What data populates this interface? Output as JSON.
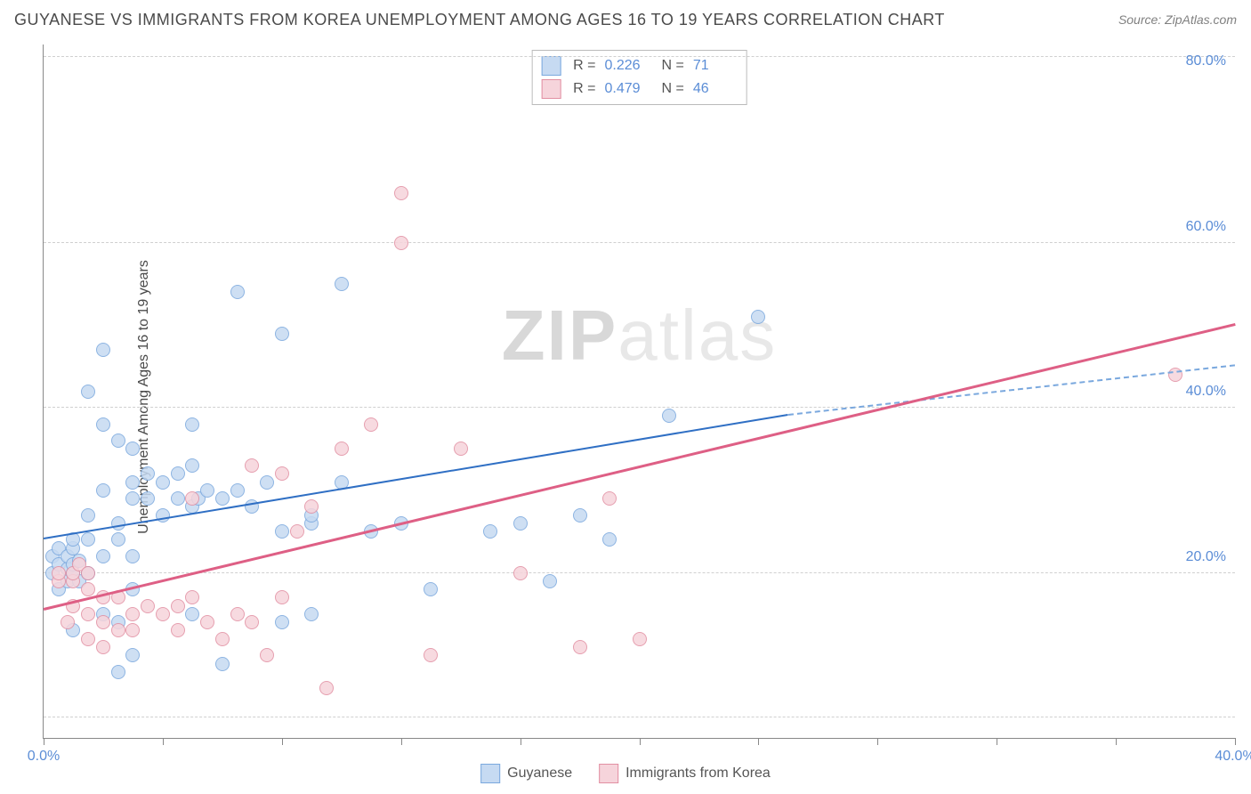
{
  "header": {
    "title": "GUYANESE VS IMMIGRANTS FROM KOREA UNEMPLOYMENT AMONG AGES 16 TO 19 YEARS CORRELATION CHART",
    "source": "Source: ZipAtlas.com"
  },
  "watermark": {
    "part1": "ZIP",
    "part2": "atlas"
  },
  "chart": {
    "type": "scatter",
    "ylabel": "Unemployment Among Ages 16 to 19 years",
    "xlim": [
      0,
      40
    ],
    "ylim": [
      0,
      84
    ],
    "background_color": "#ffffff",
    "grid_color": "#d0d0d0",
    "axis_color": "#888888",
    "tick_label_color": "#5b8dd6",
    "axis_label_color": "#4a4a4a",
    "marker_radius": 8,
    "marker_stroke_width": 1.5,
    "yticks": [
      {
        "value": 20,
        "label": "20.0%"
      },
      {
        "value": 40,
        "label": "40.0%"
      },
      {
        "value": 60,
        "label": "60.0%"
      },
      {
        "value": 80,
        "label": "80.0%"
      }
    ],
    "y_gridlines": [
      2.5,
      20,
      40,
      60,
      82.5
    ],
    "xtick_positions": [
      0,
      4,
      8,
      12,
      16,
      20,
      24,
      28,
      32,
      36,
      40
    ],
    "xtick_labels": [
      {
        "value": 0,
        "label": "0.0%"
      },
      {
        "value": 40,
        "label": "40.0%"
      }
    ],
    "series": [
      {
        "name": "Guyanese",
        "fill": "#c6daf2",
        "stroke": "#7aa8de",
        "r": 0.226,
        "n": 71,
        "trend": {
          "x1": 0,
          "y1": 24,
          "x2": 25,
          "y2": 39,
          "color": "#2f6fc4",
          "width": 2
        },
        "trend_extrapolate": {
          "x1": 25,
          "y1": 39,
          "x2": 40,
          "y2": 45,
          "color": "#7aa8de"
        },
        "points": [
          [
            0.3,
            20
          ],
          [
            0.3,
            22
          ],
          [
            0.5,
            18
          ],
          [
            0.5,
            21
          ],
          [
            0.5,
            23
          ],
          [
            0.8,
            19
          ],
          [
            0.8,
            20.5
          ],
          [
            0.8,
            22
          ],
          [
            1,
            13
          ],
          [
            1,
            20
          ],
          [
            1,
            21
          ],
          [
            1,
            23
          ],
          [
            1,
            24
          ],
          [
            1.2,
            19
          ],
          [
            1.2,
            21.5
          ],
          [
            1.5,
            20
          ],
          [
            1.5,
            24
          ],
          [
            1.5,
            27
          ],
          [
            1.5,
            42
          ],
          [
            2,
            15
          ],
          [
            2,
            22
          ],
          [
            2,
            30
          ],
          [
            2,
            38
          ],
          [
            2,
            47
          ],
          [
            2.5,
            8
          ],
          [
            2.5,
            14
          ],
          [
            2.5,
            24
          ],
          [
            2.5,
            26
          ],
          [
            2.5,
            36
          ],
          [
            3,
            10
          ],
          [
            3,
            18
          ],
          [
            3,
            22
          ],
          [
            3,
            29
          ],
          [
            3,
            31
          ],
          [
            3,
            35
          ],
          [
            3.5,
            29
          ],
          [
            3.5,
            32
          ],
          [
            4,
            27
          ],
          [
            4,
            31
          ],
          [
            4.5,
            29
          ],
          [
            4.5,
            32
          ],
          [
            5,
            15
          ],
          [
            5,
            28
          ],
          [
            5,
            33
          ],
          [
            5,
            38
          ],
          [
            5.2,
            29
          ],
          [
            5.5,
            30
          ],
          [
            6,
            9
          ],
          [
            6,
            29
          ],
          [
            6.5,
            30
          ],
          [
            6.5,
            54
          ],
          [
            7,
            28
          ],
          [
            7.5,
            31
          ],
          [
            8,
            14
          ],
          [
            8,
            25
          ],
          [
            8,
            49
          ],
          [
            9,
            15
          ],
          [
            9,
            26
          ],
          [
            9,
            27
          ],
          [
            10,
            55
          ],
          [
            10,
            31
          ],
          [
            11,
            25
          ],
          [
            12,
            26
          ],
          [
            13,
            18
          ],
          [
            15,
            25
          ],
          [
            16,
            26
          ],
          [
            17,
            19
          ],
          [
            18,
            27
          ],
          [
            19,
            24
          ],
          [
            21,
            39
          ],
          [
            24,
            51
          ]
        ]
      },
      {
        "name": "Immigrants from Korea",
        "fill": "#f6d4db",
        "stroke": "#e28fa2",
        "r": 0.479,
        "n": 46,
        "trend": {
          "x1": 0,
          "y1": 15.5,
          "x2": 40,
          "y2": 50,
          "color": "#de5f85",
          "width": 2.5
        },
        "points": [
          [
            0.5,
            19
          ],
          [
            0.5,
            20
          ],
          [
            0.8,
            14
          ],
          [
            1,
            16
          ],
          [
            1,
            19
          ],
          [
            1,
            20
          ],
          [
            1.2,
            21
          ],
          [
            1.5,
            12
          ],
          [
            1.5,
            15
          ],
          [
            1.5,
            18
          ],
          [
            1.5,
            20
          ],
          [
            2,
            11
          ],
          [
            2,
            14
          ],
          [
            2,
            17
          ],
          [
            2.5,
            13
          ],
          [
            2.5,
            17
          ],
          [
            3,
            13
          ],
          [
            3,
            15
          ],
          [
            3.5,
            16
          ],
          [
            4,
            15
          ],
          [
            4.5,
            13
          ],
          [
            4.5,
            16
          ],
          [
            5,
            17
          ],
          [
            5,
            29
          ],
          [
            5.5,
            14
          ],
          [
            6,
            12
          ],
          [
            6.5,
            15
          ],
          [
            7,
            14
          ],
          [
            7,
            33
          ],
          [
            7.5,
            10
          ],
          [
            8,
            17
          ],
          [
            8,
            32
          ],
          [
            8.5,
            25
          ],
          [
            9,
            28
          ],
          [
            9.5,
            6
          ],
          [
            10,
            35
          ],
          [
            11,
            38
          ],
          [
            12,
            66
          ],
          [
            12,
            60
          ],
          [
            13,
            10
          ],
          [
            14,
            35
          ],
          [
            16,
            20
          ],
          [
            18,
            11
          ],
          [
            19,
            29
          ],
          [
            20,
            12
          ],
          [
            38,
            44
          ]
        ]
      }
    ],
    "legend_top": {
      "border_color": "#bbbbbb",
      "label_r": "R =",
      "label_n": "N =",
      "label_color": "#555555",
      "value_color": "#5b8dd6"
    },
    "legend_bottom": {
      "label_color": "#555555"
    }
  }
}
